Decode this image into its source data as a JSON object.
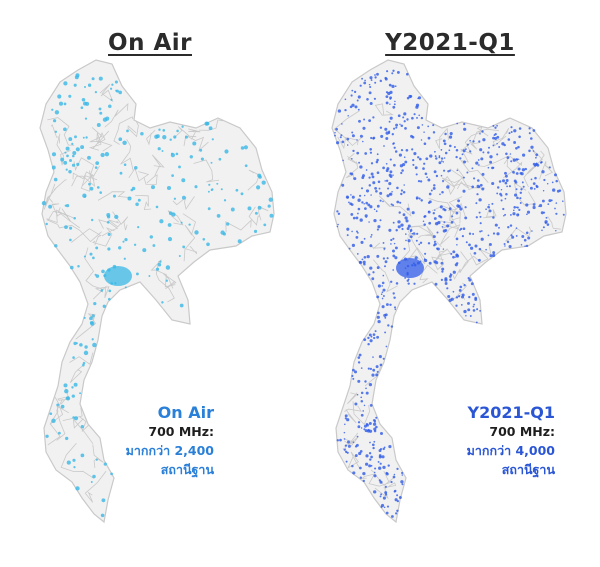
{
  "colors": {
    "road": "#c9c9c9",
    "land": "#f1f1f1",
    "dot_left": "#39b8e6",
    "dot_right": "#2f5be8",
    "text_dark": "#222222"
  },
  "left_panel": {
    "title": "On Air",
    "legend": {
      "heading": "On Air",
      "line1": "700 MHz:",
      "line2": "มากกว่า 2,400",
      "line3": "สถานีฐาน"
    }
  },
  "right_panel": {
    "title": "Y2021-Q1",
    "legend": {
      "heading": "Y2021-Q1",
      "line1": "700 MHz:",
      "line2": "มากกว่า 4,000",
      "line3": "สถานีฐาน"
    }
  }
}
